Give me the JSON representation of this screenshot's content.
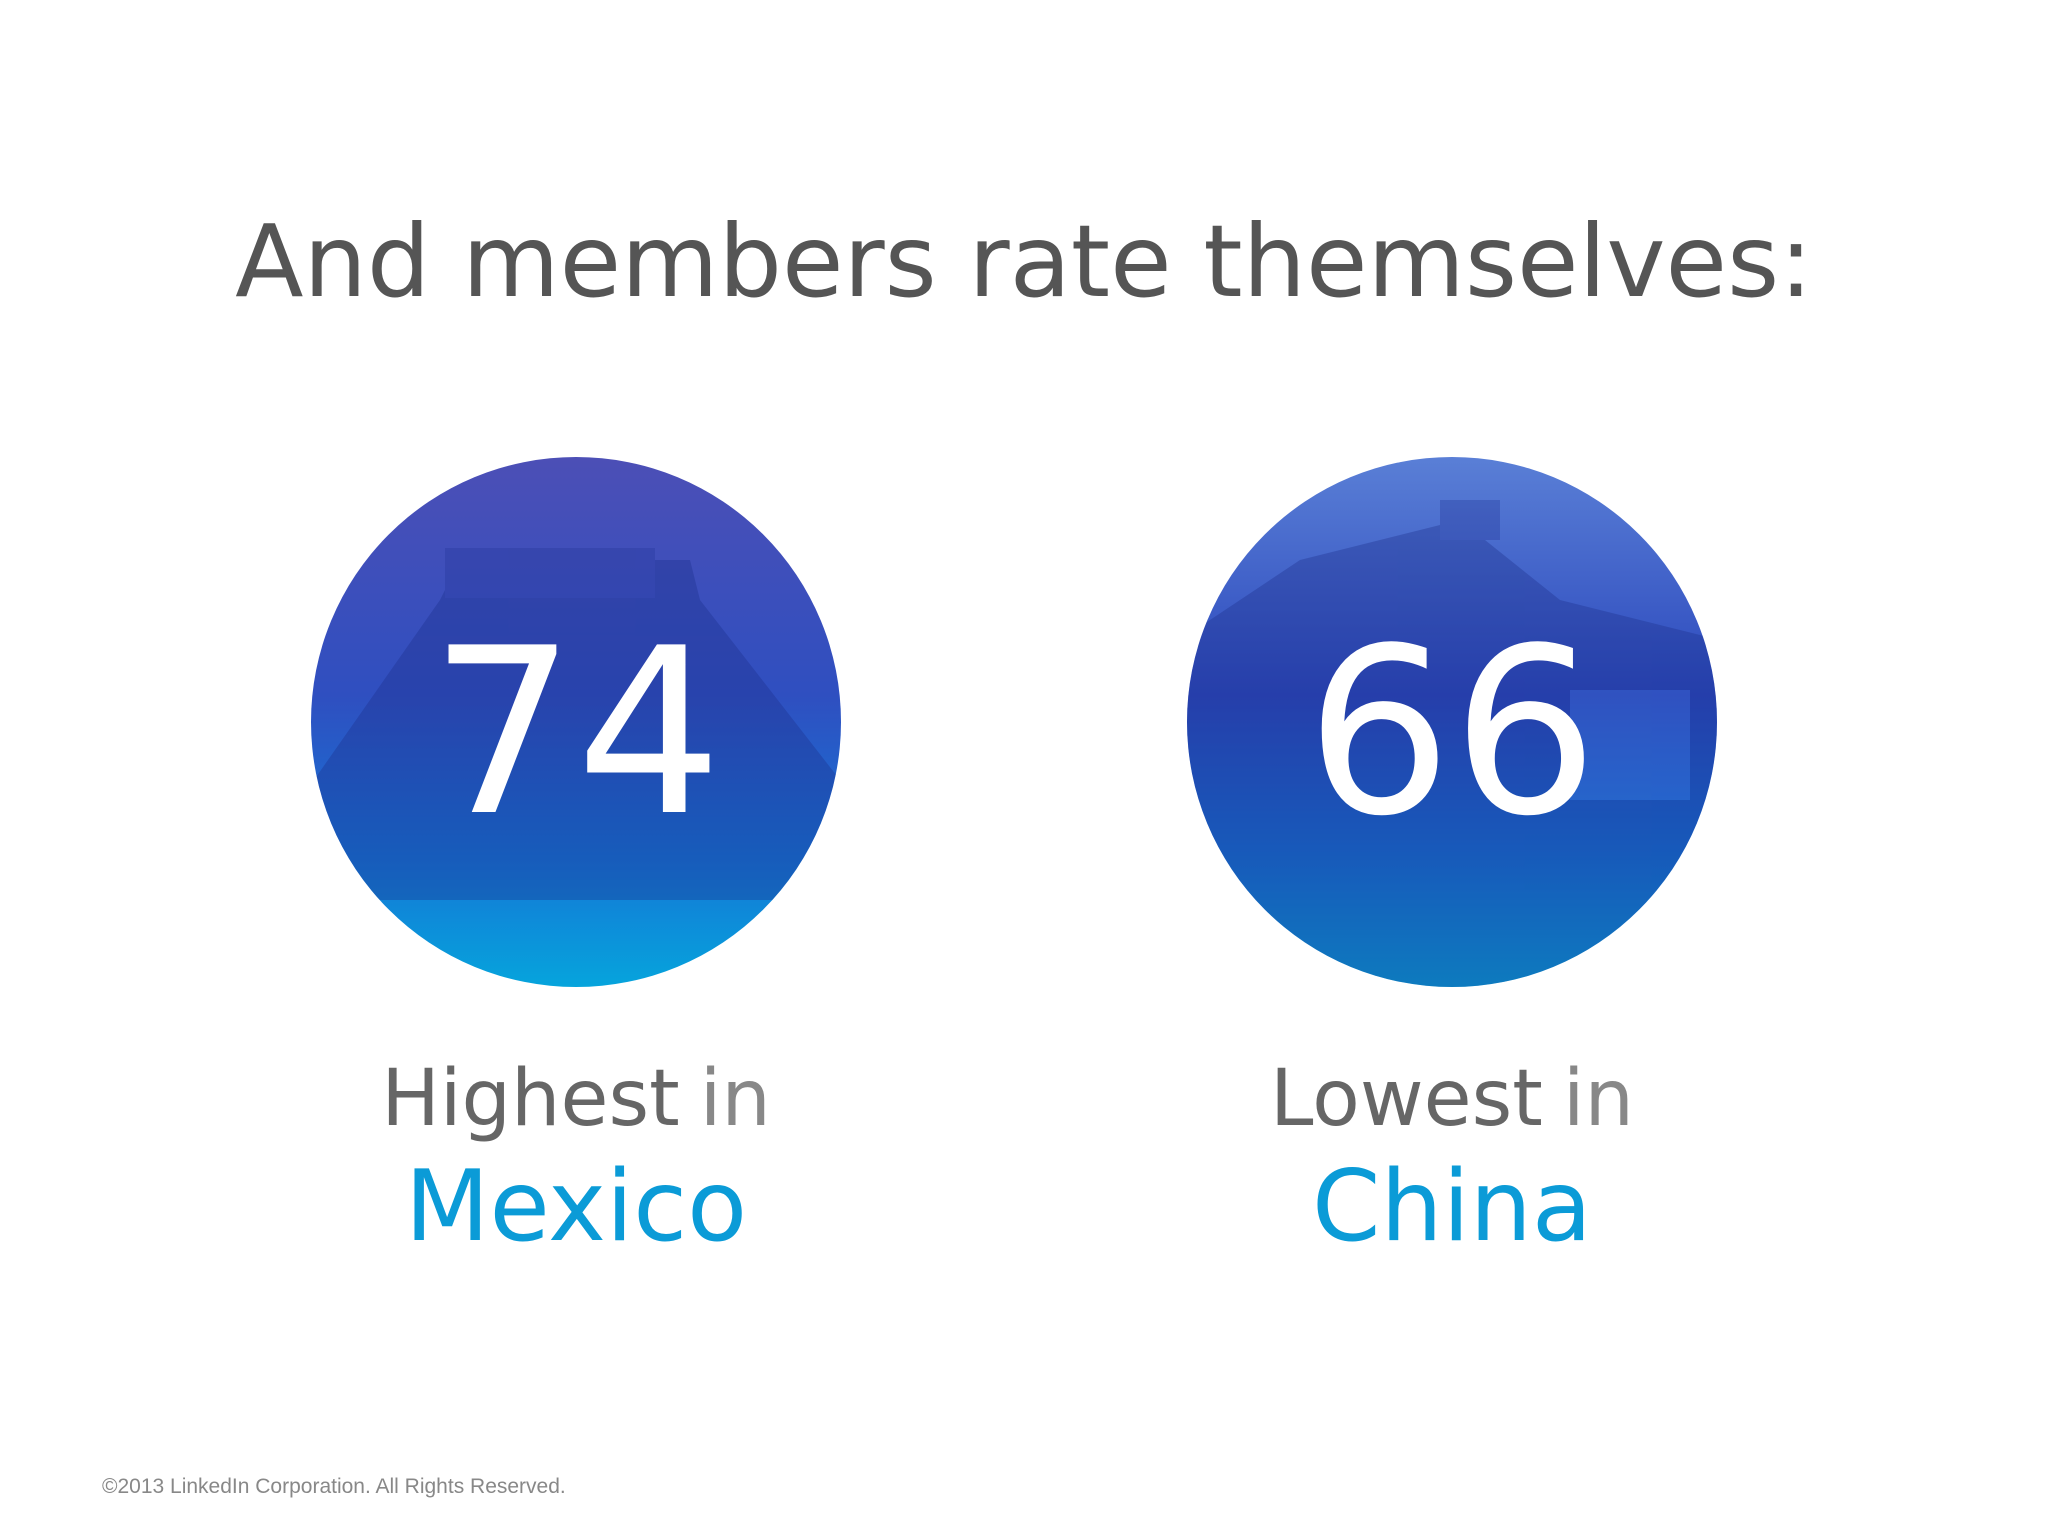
{
  "title": "And members rate themselves:",
  "stats": [
    {
      "value": 74,
      "label_strong": "Highest",
      "label_rest": "in",
      "place": "Mexico"
    },
    {
      "value": 66,
      "label_strong": "Lowest",
      "label_rest": "in",
      "place": "China"
    }
  ],
  "footer": "©2013 LinkedIn Corporation. All Rights Reserved."
}
